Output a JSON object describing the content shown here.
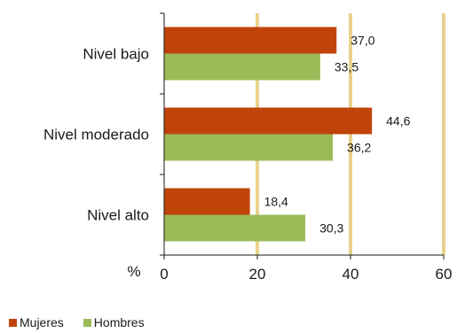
{
  "chart_data": {
    "type": "bar",
    "orientation": "horizontal",
    "categories": [
      "Nivel bajo",
      "Nivel moderado",
      "Nivel alto"
    ],
    "series": [
      {
        "name": "Mujeres",
        "values": [
          37.0,
          44.6,
          18.4
        ],
        "labels": [
          "37,0",
          "44,6",
          "18,4"
        ],
        "color": "#c0430a"
      },
      {
        "name": "Hombres",
        "values": [
          33.5,
          36.2,
          30.3
        ],
        "labels": [
          "33,5",
          "36,2",
          "30,3"
        ],
        "color": "#9bbb59"
      }
    ],
    "xlim": [
      0,
      60
    ],
    "xticks": [
      "0",
      "20",
      "40",
      "60"
    ],
    "unit_label": "%",
    "gridline_color": "#e8d28e",
    "legend_position": "bottom-left"
  }
}
